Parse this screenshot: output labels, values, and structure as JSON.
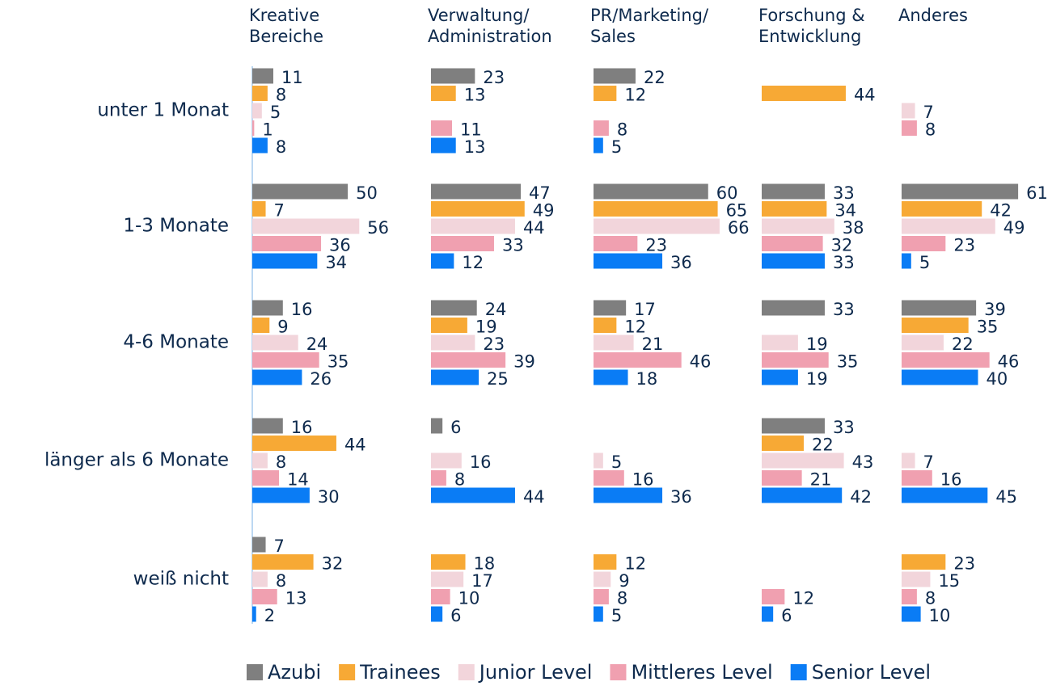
{
  "chart_data": {
    "type": "bar",
    "orientation": "horizontal",
    "panel_titles": [
      "Kreative\nBereiche",
      "Verwaltung/\nAdministration",
      "PR/Marketing/\nSales",
      "Forschung &\nEntwicklung",
      "Anderes"
    ],
    "categories": [
      "unter 1 Monat",
      "1-3 Monate",
      "4-6 Monate",
      "länger als 6 Monate",
      "weiß nicht"
    ],
    "xlim": [
      0,
      80
    ],
    "series": [
      {
        "name": "Azubi",
        "color": "#7f7f7f",
        "values": [
          [
            11,
            50,
            16,
            16,
            7
          ],
          [
            23,
            47,
            24,
            6,
            null
          ],
          [
            22,
            60,
            17,
            null,
            null
          ],
          [
            null,
            33,
            33,
            33,
            null
          ],
          [
            null,
            61,
            39,
            null,
            null
          ]
        ]
      },
      {
        "name": "Trainees",
        "color": "#f7a935",
        "values": [
          [
            8,
            7,
            9,
            44,
            32
          ],
          [
            13,
            49,
            19,
            null,
            18
          ],
          [
            12,
            65,
            12,
            null,
            12
          ],
          [
            44,
            34,
            null,
            22,
            null
          ],
          [
            null,
            42,
            35,
            null,
            23
          ]
        ]
      },
      {
        "name": "Junior Level",
        "color": "#f2d5db",
        "values": [
          [
            5,
            56,
            24,
            8,
            8
          ],
          [
            null,
            44,
            23,
            16,
            17
          ],
          [
            null,
            66,
            21,
            5,
            9
          ],
          [
            null,
            38,
            19,
            43,
            null
          ],
          [
            7,
            49,
            22,
            7,
            15
          ]
        ]
      },
      {
        "name": "Mittleres Level",
        "color": "#f0a0b0",
        "values": [
          [
            1,
            36,
            35,
            14,
            13
          ],
          [
            11,
            33,
            39,
            8,
            10
          ],
          [
            8,
            23,
            46,
            16,
            8
          ],
          [
            null,
            32,
            35,
            21,
            12
          ],
          [
            8,
            23,
            46,
            16,
            8
          ]
        ]
      },
      {
        "name": "Senior Level",
        "color": "#0a7cf5",
        "values": [
          [
            8,
            34,
            26,
            30,
            2
          ],
          [
            13,
            12,
            25,
            44,
            6
          ],
          [
            5,
            36,
            18,
            36,
            5
          ],
          [
            null,
            33,
            19,
            42,
            6
          ],
          [
            null,
            5,
            40,
            45,
            10
          ]
        ]
      }
    ],
    "legend": "bottom"
  }
}
